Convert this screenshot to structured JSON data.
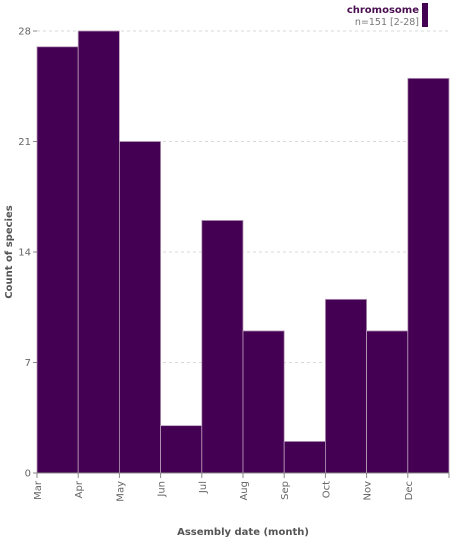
{
  "chart_data": {
    "type": "bar",
    "categories": [
      "Mar",
      "Apr",
      "May",
      "Jun",
      "Jul",
      "Aug",
      "Sep",
      "Oct",
      "Nov",
      "Dec"
    ],
    "series": [
      {
        "name": "chromosome",
        "values": [
          27,
          28,
          21,
          3,
          16,
          9,
          2,
          11,
          9,
          25
        ]
      }
    ],
    "xlabel": "Assembly date (month)",
    "ylabel": "Count of species",
    "ylim": [
      0,
      28
    ],
    "yticks": [
      0,
      7,
      14,
      21,
      28
    ],
    "grid": true,
    "legend": {
      "position": "top-right",
      "title": "chromosome",
      "subtitle": "n=151 [2-28]"
    },
    "colors": {
      "bar": "#440154",
      "legend_title": "#4a0f50"
    }
  }
}
